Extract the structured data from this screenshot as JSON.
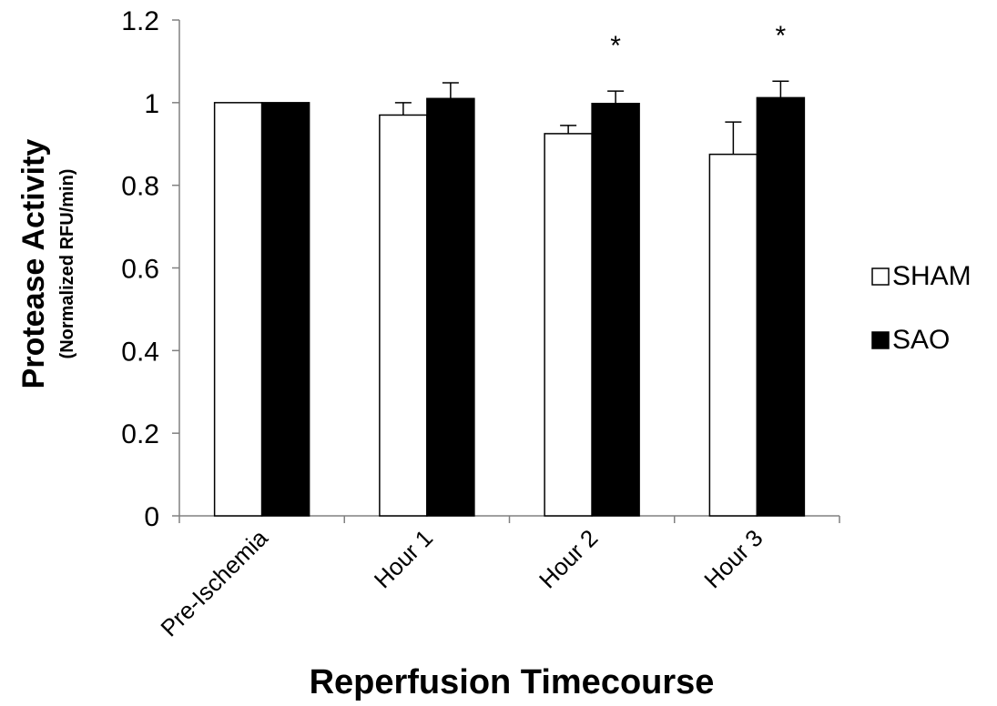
{
  "chart_data": {
    "type": "bar",
    "categories": [
      "Pre-Ischemia",
      "Hour 1",
      "Hour 2",
      "Hour 3"
    ],
    "series": [
      {
        "name": "SHAM",
        "values": [
          1.0,
          0.97,
          0.925,
          0.875
        ],
        "errors": [
          0.0,
          0.03,
          0.02,
          0.078
        ],
        "color": "#ffffff"
      },
      {
        "name": "SAO",
        "values": [
          1.0,
          1.01,
          0.998,
          1.012
        ],
        "errors": [
          0.0,
          0.038,
          0.03,
          0.04
        ],
        "color": "#000000"
      }
    ],
    "significance": [
      "",
      "",
      "*",
      "*"
    ],
    "xlabel": "Reperfusion Timecourse",
    "ylabel": "Protease Activity",
    "ylabel_sub": "(Normalized RFU/min)",
    "ylim": [
      0,
      1.2
    ],
    "yticks": [
      "0",
      "0.2",
      "0.4",
      "0.6",
      "0.8",
      "1",
      "1.2"
    ],
    "legend_position": "right",
    "grid": false
  }
}
